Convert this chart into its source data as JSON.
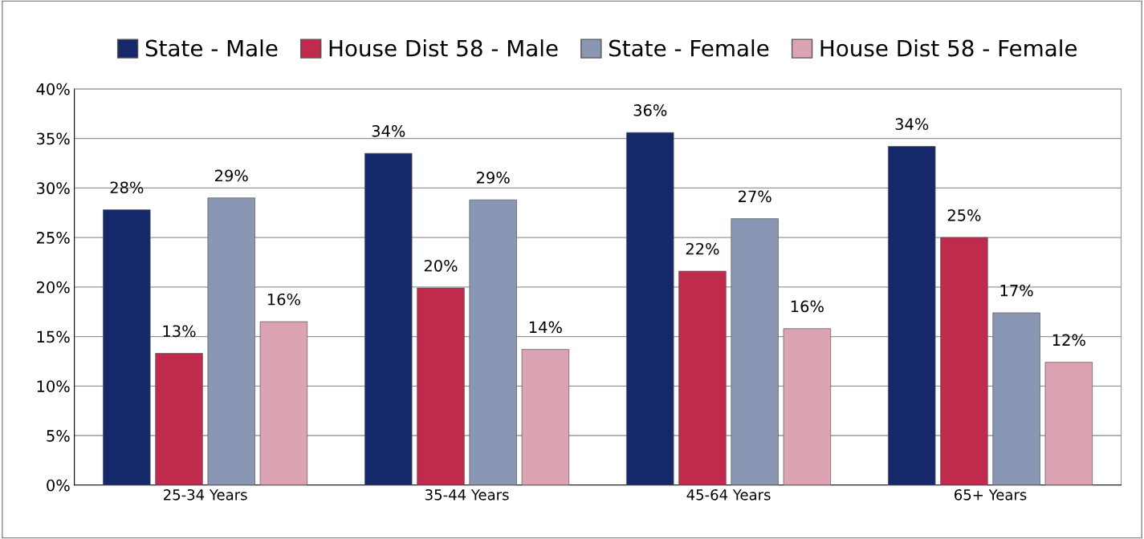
{
  "chart_data": {
    "type": "bar",
    "categories": [
      "25-34 Years",
      "35-44 Years",
      "45-64 Years",
      "65+ Years"
    ],
    "series": [
      {
        "name": "State - Male",
        "color": "#14286a",
        "values": [
          27.8,
          33.5,
          35.6,
          34.2
        ],
        "value_labels": [
          "28%",
          "34%",
          "36%",
          "34%"
        ]
      },
      {
        "name": "House Dist 58 - Male",
        "color": "#c02a4c",
        "values": [
          13.3,
          19.9,
          21.6,
          25.0
        ],
        "value_labels": [
          "13%",
          "20%",
          "22%",
          "25%"
        ]
      },
      {
        "name": "State - Female",
        "color": "#8a97b4",
        "values": [
          29.0,
          28.8,
          26.9,
          17.4
        ],
        "value_labels": [
          "29%",
          "29%",
          "27%",
          "17%"
        ]
      },
      {
        "name": "House Dist 58 - Female",
        "color": "#dca3b3",
        "values": [
          16.5,
          13.7,
          15.8,
          12.4
        ],
        "value_labels": [
          "16%",
          "14%",
          "16%",
          "12%"
        ]
      }
    ],
    "ylim": [
      0,
      40
    ],
    "yticks": [
      {
        "value": 0,
        "label": "0%"
      },
      {
        "value": 5,
        "label": "5%"
      },
      {
        "value": 10,
        "label": "10%"
      },
      {
        "value": 15,
        "label": "15%"
      },
      {
        "value": 20,
        "label": "20%"
      },
      {
        "value": 25,
        "label": "25%"
      },
      {
        "value": 30,
        "label": "30%"
      },
      {
        "value": 35,
        "label": "35%"
      },
      {
        "value": 40,
        "label": "40%"
      }
    ],
    "grid": "y",
    "legend": "top"
  }
}
